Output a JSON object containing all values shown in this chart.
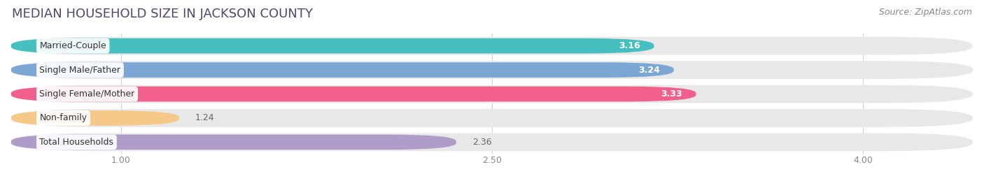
{
  "title": "MEDIAN HOUSEHOLD SIZE IN JACKSON COUNTY",
  "source": "Source: ZipAtlas.com",
  "categories": [
    "Married-Couple",
    "Single Male/Father",
    "Single Female/Mother",
    "Non-family",
    "Total Households"
  ],
  "values": [
    3.16,
    3.24,
    3.33,
    1.24,
    2.36
  ],
  "bar_colors": [
    "#45BFBF",
    "#7BA7D4",
    "#F0608A",
    "#F5C98A",
    "#B09CC8"
  ],
  "value_label_white": [
    true,
    true,
    true,
    false,
    false
  ],
  "xlim_min": 0.55,
  "xlim_max": 4.45,
  "xticks": [
    1.0,
    2.5,
    4.0
  ],
  "xtick_labels": [
    "1.00",
    "2.50",
    "4.00"
  ],
  "background_color": "#ffffff",
  "bar_bg_color": "#e8e8e8",
  "title_fontsize": 13,
  "source_fontsize": 9,
  "value_fontsize": 9,
  "label_fontsize": 9,
  "tick_fontsize": 9
}
